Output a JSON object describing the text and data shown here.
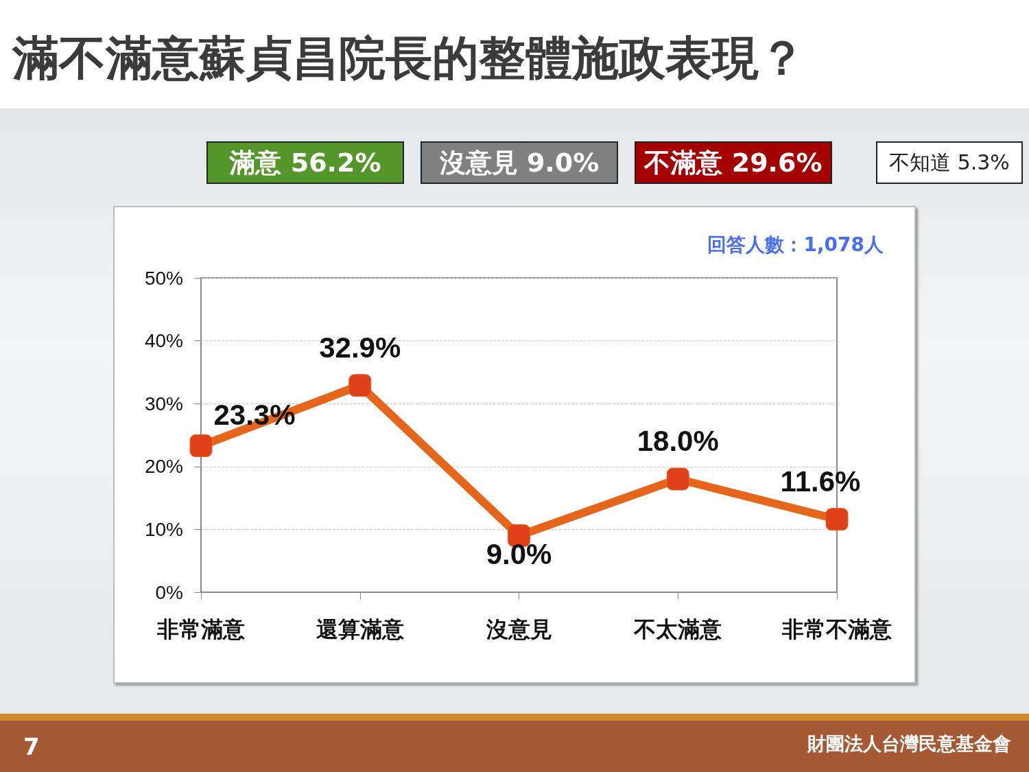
{
  "chart_data": {
    "type": "line",
    "title": "滿不滿意蘇貞昌院長的整體施政表現？",
    "categories": [
      "非常滿意",
      "還算滿意",
      "沒意見",
      "不太滿意",
      "非常不滿意"
    ],
    "series": [
      {
        "color": "#e5661a",
        "values": [
          23.3,
          32.9,
          9.0,
          18.0,
          11.6
        ],
        "value_labels": [
          "23.3%",
          "32.9%",
          "9.0%",
          "18.0%",
          "11.6%"
        ]
      }
    ],
    "ylim": [
      0,
      50
    ],
    "yticks": [
      {
        "value": 0,
        "label": "0%"
      },
      {
        "value": 10,
        "label": "10%"
      },
      {
        "value": 20,
        "label": "20%"
      },
      {
        "value": 30,
        "label": "30%"
      },
      {
        "value": 40,
        "label": "40%"
      },
      {
        "value": 50,
        "label": "50%"
      }
    ],
    "grid": "y",
    "marker": "square",
    "line_style": "solid",
    "annotations": [
      "滿意 56.2%",
      "沒意見 9.0%",
      "不滿意 29.6%",
      "不知道 5.3%",
      "回答人數：1,078人",
      "7",
      "財團法人台灣民意基金會"
    ]
  }
}
